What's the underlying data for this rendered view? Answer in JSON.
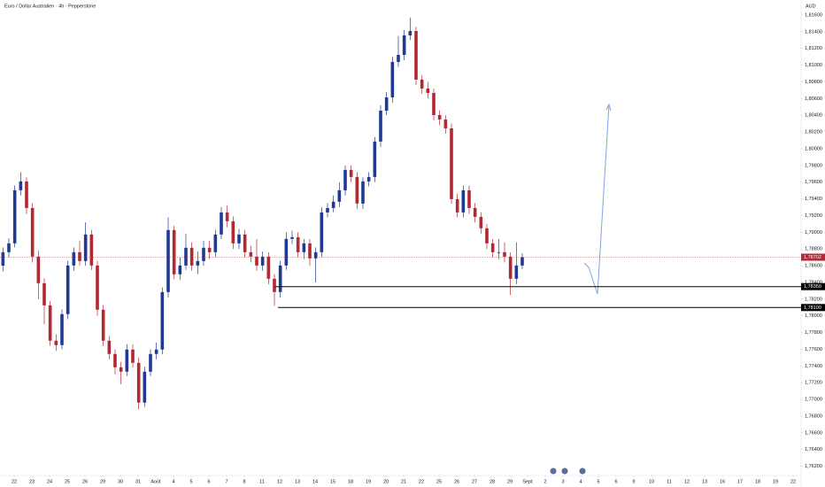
{
  "chart_data": {
    "type": "candlestick",
    "title": "Euro / Dollar Australien · 4h · Pepperstone",
    "currency": "AUD",
    "up_color": "#1f3a93",
    "down_color": "#b22833",
    "xlim": [
      0,
      135.75
    ],
    "ylim": [
      1.7609,
      1.8178
    ],
    "open": [
      1.786,
      1.78762,
      1.78868,
      1.79503,
      1.79609,
      1.79291,
      1.78709,
      1.78391,
      1.78126,
      1.77703,
      1.7765,
      1.78021,
      1.78603,
      1.78762,
      1.78656,
      1.78974,
      1.78603,
      1.78074,
      1.77703,
      1.77544,
      1.77385,
      1.77332,
      1.77597,
      1.77438,
      1.76962,
      1.77332,
      1.77544,
      1.77597,
      1.78285,
      1.79027,
      1.78497,
      1.78603,
      1.78815,
      1.78603,
      1.78656,
      1.78815,
      1.78762,
      1.78974,
      1.79238,
      1.79133,
      1.78868,
      1.78974,
      1.78762,
      1.78709,
      1.78603,
      1.78709,
      1.78444,
      1.78285,
      1.78603,
      1.78921,
      1.78942,
      1.78762,
      1.78868,
      1.78688,
      1.78762,
      1.79238,
      1.79291,
      1.79366,
      1.79503,
      1.79747,
      1.79662,
      1.79344,
      1.79609,
      1.79662,
      1.80086,
      1.80456,
      1.80615,
      1.81039,
      1.81123,
      1.81356,
      1.81409,
      1.80827,
      1.80721,
      1.80668,
      1.80403,
      1.8035,
      1.80244,
      1.79397,
      1.79238,
      1.79503,
      1.79291,
      1.79185,
      1.79048,
      1.78868,
      1.78762,
      1.78762,
      1.78709,
      1.78444,
      1.78603
    ],
    "high": [
      1.7882,
      1.7893,
      1.7956,
      1.7972,
      1.7966,
      1.7935,
      1.7878,
      1.7845,
      1.7818,
      1.7778,
      1.7808,
      1.7866,
      1.7882,
      1.789,
      1.7912,
      1.7903,
      1.7866,
      1.7813,
      1.7776,
      1.776,
      1.7745,
      1.7766,
      1.7766,
      1.775,
      1.7739,
      1.776,
      1.7768,
      1.7834,
      1.7918,
      1.7908,
      1.787,
      1.7898,
      1.7888,
      1.7877,
      1.789,
      1.789,
      1.7903,
      1.793,
      1.7932,
      1.7919,
      1.7904,
      1.7903,
      1.7884,
      1.7892,
      1.7877,
      1.7876,
      1.785,
      1.7866,
      1.79,
      1.7902,
      1.79,
      1.7892,
      1.7892,
      1.7882,
      1.793,
      1.7935,
      1.7944,
      1.796,
      1.798,
      1.798,
      1.7972,
      1.7966,
      1.7972,
      1.8014,
      1.8052,
      1.8068,
      1.811,
      1.8135,
      1.8142,
      1.8157,
      1.8146,
      1.8088,
      1.808,
      1.8072,
      1.8046,
      1.804,
      1.803,
      1.7946,
      1.7956,
      1.7956,
      1.7935,
      1.7924,
      1.791,
      1.7892,
      1.7892,
      1.7888,
      1.7876,
      1.7888,
      1.7875
    ],
    "low": [
      1.7853,
      1.787,
      1.7882,
      1.7944,
      1.7922,
      1.7864,
      1.782,
      1.779,
      1.7764,
      1.7758,
      1.776,
      1.7796,
      1.7854,
      1.786,
      1.786,
      1.7855,
      1.78,
      1.7764,
      1.7748,
      1.773,
      1.7718,
      1.7728,
      1.7738,
      1.7688,
      1.7691,
      1.7728,
      1.7748,
      1.7754,
      1.7822,
      1.7844,
      1.7843,
      1.7855,
      1.7854,
      1.785,
      1.786,
      1.7868,
      1.787,
      1.7892,
      1.7906,
      1.788,
      1.788,
      1.787,
      1.7864,
      1.7854,
      1.7854,
      1.7838,
      1.7812,
      1.7822,
      1.7855,
      1.7886,
      1.787,
      1.7868,
      1.786,
      1.784,
      1.787,
      1.7918,
      1.7924,
      1.793,
      1.7944,
      1.796,
      1.7928,
      1.7928,
      1.7955,
      1.796,
      1.8002,
      1.804,
      1.8055,
      1.8098,
      1.8106,
      1.813,
      1.8076,
      1.8066,
      1.806,
      1.8034,
      1.8028,
      1.8018,
      1.7934,
      1.7918,
      1.7918,
      1.7922,
      1.7912,
      1.7898,
      1.788,
      1.787,
      1.7868,
      1.7864,
      1.7825,
      1.7838,
      1.7856
    ],
    "close": [
      1.78762,
      1.78868,
      1.79503,
      1.79609,
      1.79291,
      1.78709,
      1.78391,
      1.78126,
      1.77703,
      1.7765,
      1.78021,
      1.78603,
      1.78762,
      1.78656,
      1.78974,
      1.78603,
      1.78074,
      1.77703,
      1.77544,
      1.77385,
      1.77332,
      1.77597,
      1.77438,
      1.76962,
      1.77332,
      1.77544,
      1.77597,
      1.78285,
      1.79027,
      1.78497,
      1.78603,
      1.78815,
      1.78603,
      1.78656,
      1.78815,
      1.78762,
      1.78974,
      1.79238,
      1.79133,
      1.78868,
      1.78974,
      1.78762,
      1.78709,
      1.78603,
      1.78709,
      1.78444,
      1.78285,
      1.78603,
      1.78921,
      1.78942,
      1.78762,
      1.78868,
      1.78688,
      1.78762,
      1.79238,
      1.79291,
      1.79366,
      1.79503,
      1.79747,
      1.79662,
      1.79344,
      1.79609,
      1.79662,
      1.80086,
      1.80456,
      1.80615,
      1.81039,
      1.81123,
      1.81356,
      1.81409,
      1.80827,
      1.80721,
      1.80668,
      1.80403,
      1.8035,
      1.80244,
      1.79397,
      1.79238,
      1.79503,
      1.79291,
      1.79185,
      1.79048,
      1.78868,
      1.78762,
      1.78762,
      1.78709,
      1.78444,
      1.78603,
      1.78702
    ],
    "price_lines": [
      {
        "value": 1.78702,
        "label": "1,78702",
        "color": "#b22833",
        "dotted": true
      },
      {
        "value": 1.7835,
        "label": "1,78350",
        "color": "#000000",
        "dotted": false
      },
      {
        "value": 1.781,
        "label": "1,78100",
        "color": "#000000",
        "dotted": false
      }
    ],
    "yticks": [
      {
        "value": 1.816,
        "label": "1,81600"
      },
      {
        "value": 1.814,
        "label": "1,81400"
      },
      {
        "value": 1.812,
        "label": "1,81200"
      },
      {
        "value": 1.81,
        "label": "1,81000"
      },
      {
        "value": 1.808,
        "label": "1,80800"
      },
      {
        "value": 1.806,
        "label": "1,80600"
      },
      {
        "value": 1.804,
        "label": "1,80400"
      },
      {
        "value": 1.802,
        "label": "1,80200"
      },
      {
        "value": 1.8,
        "label": "1,80000"
      },
      {
        "value": 1.798,
        "label": "1,79800"
      },
      {
        "value": 1.796,
        "label": "1,79600"
      },
      {
        "value": 1.794,
        "label": "1,79400"
      },
      {
        "value": 1.792,
        "label": "1,79200"
      },
      {
        "value": 1.79,
        "label": "1,79000"
      },
      {
        "value": 1.788,
        "label": "1,78800"
      },
      {
        "value": 1.786,
        "label": "1,78600"
      },
      {
        "value": 1.784,
        "label": "1,78400"
      },
      {
        "value": 1.782,
        "label": "1,78200"
      },
      {
        "value": 1.78,
        "label": "1,78000"
      },
      {
        "value": 1.778,
        "label": "1,77800"
      },
      {
        "value": 1.776,
        "label": "1,77600"
      },
      {
        "value": 1.774,
        "label": "1,77400"
      },
      {
        "value": 1.772,
        "label": "1,77200"
      },
      {
        "value": 1.77,
        "label": "1,77000"
      },
      {
        "value": 1.768,
        "label": "1,76800"
      },
      {
        "value": 1.766,
        "label": "1,76600"
      },
      {
        "value": 1.764,
        "label": "1,76400"
      },
      {
        "value": 1.762,
        "label": "1,76200"
      }
    ],
    "xticks": [
      {
        "value": 2.4,
        "label": "22"
      },
      {
        "value": 5.4,
        "label": "23"
      },
      {
        "value": 8.4,
        "label": "24"
      },
      {
        "value": 11.4,
        "label": "25"
      },
      {
        "value": 14.4,
        "label": "26"
      },
      {
        "value": 17.4,
        "label": "29"
      },
      {
        "value": 20.4,
        "label": "30"
      },
      {
        "value": 23.4,
        "label": "31"
      },
      {
        "value": 26.4,
        "label": "Août"
      },
      {
        "value": 29.4,
        "label": "4"
      },
      {
        "value": 32.4,
        "label": "5"
      },
      {
        "value": 35.4,
        "label": "6"
      },
      {
        "value": 38.4,
        "label": "7"
      },
      {
        "value": 41.4,
        "label": "8"
      },
      {
        "value": 44.4,
        "label": "11"
      },
      {
        "value": 47.4,
        "label": "12"
      },
      {
        "value": 50.4,
        "label": "13"
      },
      {
        "value": 53.4,
        "label": "14"
      },
      {
        "value": 56.4,
        "label": "15"
      },
      {
        "value": 59.4,
        "label": "18"
      },
      {
        "value": 62.4,
        "label": "19"
      },
      {
        "value": 65.4,
        "label": "20"
      },
      {
        "value": 68.4,
        "label": "21"
      },
      {
        "value": 71.4,
        "label": "22"
      },
      {
        "value": 74.4,
        "label": "25"
      },
      {
        "value": 77.4,
        "label": "26"
      },
      {
        "value": 80.4,
        "label": "27"
      },
      {
        "value": 83.4,
        "label": "28"
      },
      {
        "value": 86.4,
        "label": "29"
      },
      {
        "value": 89.4,
        "label": "Sept"
      },
      {
        "value": 92.4,
        "label": "2"
      },
      {
        "value": 95.4,
        "label": "3"
      },
      {
        "value": 98.4,
        "label": "4"
      },
      {
        "value": 101.4,
        "label": "5"
      },
      {
        "value": 104.4,
        "label": "6"
      },
      {
        "value": 107.4,
        "label": "9"
      },
      {
        "value": 110.4,
        "label": "10"
      },
      {
        "value": 113.4,
        "label": "11"
      },
      {
        "value": 116.4,
        "label": "12"
      },
      {
        "value": 119.4,
        "label": "13"
      },
      {
        "value": 122.4,
        "label": "16"
      },
      {
        "value": 125.4,
        "label": "17"
      },
      {
        "value": 128.4,
        "label": "18"
      },
      {
        "value": 131.4,
        "label": "19"
      },
      {
        "value": 134.4,
        "label": "22"
      }
    ]
  }
}
